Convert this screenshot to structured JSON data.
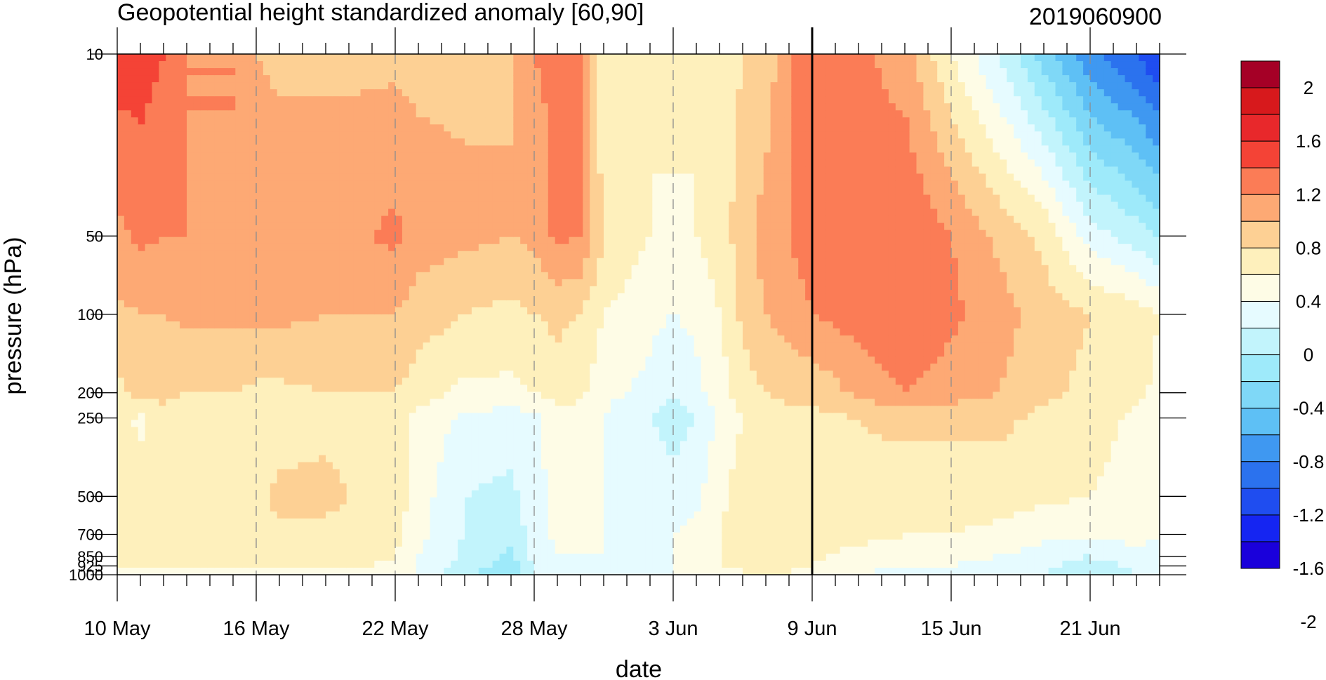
{
  "chart_data": {
    "type": "heatmap",
    "title": "Geopotential height standardized anomaly [60,90]",
    "subtitle": "2019060900",
    "xlabel": "date",
    "ylabel": "pressure (hPa)",
    "x_range_days": [
      0,
      45
    ],
    "marker_day": 30,
    "x_ticks": [
      {
        "day": 0,
        "label": "10 May"
      },
      {
        "day": 6,
        "label": "16 May"
      },
      {
        "day": 12,
        "label": "22 May"
      },
      {
        "day": 18,
        "label": "28 May"
      },
      {
        "day": 24,
        "label": "3 Jun"
      },
      {
        "day": 30,
        "label": "9 Jun"
      },
      {
        "day": 36,
        "label": "15 Jun"
      },
      {
        "day": 42,
        "label": "21 Jun"
      }
    ],
    "y_ticks": [
      "10",
      "50",
      "100",
      "200",
      "250",
      "500",
      "700",
      "850",
      "925",
      "1000"
    ],
    "levels": [
      10,
      50,
      100,
      200,
      250,
      500,
      700,
      850,
      925,
      1000
    ],
    "colorbar": {
      "labels": [
        "2",
        "1.6",
        "1.2",
        "0.8",
        "0.4",
        "0",
        "-0.4",
        "-0.8",
        "-1.2",
        "-1.6",
        "-2"
      ],
      "colors": [
        "#a50026",
        "#d7191c",
        "#e8282b",
        "#f44336",
        "#fb7c56",
        "#fda974",
        "#fdd094",
        "#fef0bc",
        "#fefce6",
        "#e6fbff",
        "#c2f4fc",
        "#9eeafa",
        "#7fd8f7",
        "#5ec0f5",
        "#3f98f1",
        "#2b72ee",
        "#1f4df0",
        "#1525f2",
        "#1a00db"
      ]
    },
    "columns": [
      {
        "day": 0,
        "values": [
          1.5,
          1.15,
          0.95,
          0.75,
          0.7,
          0.7,
          0.7,
          0.65,
          0.6,
          0.55
        ]
      },
      {
        "day": 1,
        "values": [
          1.5,
          1.25,
          1.0,
          0.85,
          0.55,
          0.7,
          0.65,
          0.65,
          0.6,
          0.55
        ]
      },
      {
        "day": 2,
        "values": [
          1.4,
          1.2,
          1.0,
          0.85,
          0.75,
          0.7,
          0.65,
          0.65,
          0.6,
          0.55
        ]
      },
      {
        "day": 3,
        "values": [
          1.2,
          1.2,
          1.05,
          0.8,
          0.7,
          0.7,
          0.65,
          0.6,
          0.6,
          0.55
        ]
      },
      {
        "day": 5,
        "values": [
          1.2,
          1.2,
          1.05,
          0.8,
          0.7,
          0.75,
          0.75,
          0.65,
          0.6,
          0.55
        ]
      },
      {
        "day": 6,
        "values": [
          1.0,
          1.2,
          1.05,
          0.75,
          0.7,
          0.75,
          0.75,
          0.65,
          0.6,
          0.55
        ]
      },
      {
        "day": 7,
        "values": [
          0.95,
          1.15,
          1.05,
          0.75,
          0.7,
          0.85,
          0.75,
          0.65,
          0.6,
          0.55
        ]
      },
      {
        "day": 9,
        "values": [
          0.95,
          1.15,
          1.0,
          0.8,
          0.75,
          0.85,
          0.75,
          0.7,
          0.6,
          0.55
        ]
      },
      {
        "day": 11,
        "values": [
          0.95,
          1.2,
          1.0,
          0.8,
          0.7,
          0.75,
          0.7,
          0.65,
          0.6,
          0.55
        ]
      },
      {
        "day": 12,
        "values": [
          0.95,
          1.25,
          1.0,
          0.8,
          0.7,
          0.7,
          0.7,
          0.6,
          0.55,
          0.5
        ]
      },
      {
        "day": 13,
        "values": [
          0.95,
          1.1,
          0.9,
          0.7,
          0.55,
          0.5,
          0.45,
          0.4,
          0.4,
          0.35
        ]
      },
      {
        "day": 15,
        "values": [
          0.95,
          1.05,
          0.8,
          0.55,
          0.35,
          0.2,
          0.2,
          0.15,
          0.1,
          0.05
        ]
      },
      {
        "day": 17,
        "values": [
          1.0,
          1.0,
          0.75,
          0.55,
          0.3,
          0.15,
          0.05,
          -0.05,
          -0.1,
          -0.15
        ]
      },
      {
        "day": 18,
        "values": [
          1.2,
          1.05,
          0.8,
          0.6,
          0.35,
          0.3,
          0.3,
          0.25,
          0.25,
          0.2
        ]
      },
      {
        "day": 19,
        "values": [
          1.25,
          1.25,
          0.85,
          0.7,
          0.5,
          0.5,
          0.45,
          0.4,
          0.4,
          0.4
        ]
      },
      {
        "day": 20,
        "values": [
          1.2,
          1.2,
          0.8,
          0.65,
          0.5,
          0.5,
          0.45,
          0.4,
          0.4,
          0.4
        ]
      },
      {
        "day": 21,
        "values": [
          0.6,
          0.8,
          0.6,
          0.45,
          0.4,
          0.4,
          0.4,
          0.4,
          0.4,
          0.4
        ]
      },
      {
        "day": 23,
        "values": [
          0.6,
          0.6,
          0.45,
          0.35,
          0.2,
          0.35,
          0.4,
          0.4,
          0.4,
          0.4
        ]
      },
      {
        "day": 24,
        "values": [
          0.7,
          0.55,
          0.4,
          0.2,
          0.1,
          0.3,
          0.4,
          0.4,
          0.4,
          0.4
        ]
      },
      {
        "day": 25,
        "values": [
          0.6,
          0.6,
          0.45,
          0.35,
          0.2,
          0.35,
          0.45,
          0.45,
          0.45,
          0.45
        ]
      },
      {
        "day": 26,
        "values": [
          0.7,
          0.7,
          0.6,
          0.5,
          0.45,
          0.55,
          0.6,
          0.6,
          0.6,
          0.55
        ]
      },
      {
        "day": 27,
        "values": [
          0.8,
          0.9,
          0.85,
          0.7,
          0.6,
          0.7,
          0.7,
          0.65,
          0.6,
          0.6
        ]
      },
      {
        "day": 28,
        "values": [
          0.85,
          1.1,
          1.0,
          0.8,
          0.7,
          0.75,
          0.7,
          0.65,
          0.6,
          0.6
        ]
      },
      {
        "day": 29,
        "values": [
          1.2,
          1.2,
          1.1,
          0.85,
          0.75,
          0.8,
          0.75,
          0.65,
          0.6,
          0.6
        ]
      },
      {
        "day": 30,
        "values": [
          1.3,
          1.3,
          1.2,
          0.85,
          0.75,
          0.8,
          0.75,
          0.65,
          0.6,
          0.55
        ]
      },
      {
        "day": 32,
        "values": [
          1.25,
          1.3,
          1.3,
          1.05,
          0.8,
          0.75,
          0.7,
          0.5,
          0.45,
          0.4
        ]
      },
      {
        "day": 34,
        "values": [
          1.1,
          1.4,
          1.4,
          1.2,
          0.85,
          0.7,
          0.6,
          0.45,
          0.4,
          0.35
        ]
      },
      {
        "day": 36,
        "values": [
          0.6,
          1.2,
          1.25,
          1.1,
          0.85,
          0.7,
          0.6,
          0.45,
          0.4,
          0.35
        ]
      },
      {
        "day": 38,
        "values": [
          0.2,
          0.95,
          1.1,
          1.0,
          0.85,
          0.7,
          0.55,
          0.4,
          0.35,
          0.3
        ]
      },
      {
        "day": 40,
        "values": [
          -0.3,
          0.75,
          0.9,
          0.85,
          0.75,
          0.65,
          0.45,
          0.3,
          0.25,
          0.2
        ]
      },
      {
        "day": 42,
        "values": [
          -0.75,
          0.3,
          0.8,
          0.75,
          0.7,
          0.6,
          0.45,
          0.2,
          0.1,
          0.05
        ]
      },
      {
        "day": 44,
        "values": [
          -1.0,
          0.1,
          0.7,
          0.65,
          0.55,
          0.5,
          0.45,
          0.35,
          0.25,
          0.2
        ]
      },
      {
        "day": 45,
        "values": [
          -1.2,
          -0.05,
          0.6,
          0.55,
          0.45,
          0.45,
          0.4,
          0.35,
          0.3,
          0.25
        ]
      }
    ]
  }
}
